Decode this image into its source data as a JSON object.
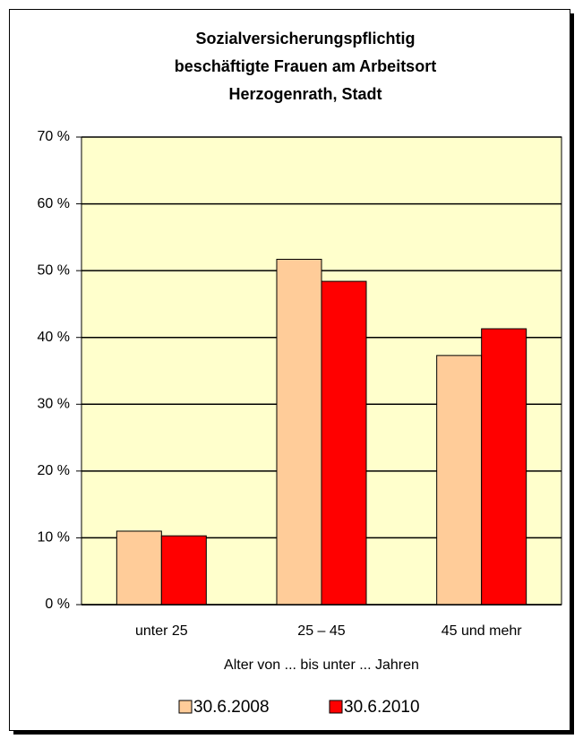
{
  "chart_data": {
    "type": "bar",
    "title": [
      "Sozialversicherungspflichtig",
      "beschäftigte Frauen am Arbeitsort",
      "Herzogenrath, Stadt"
    ],
    "x_label": "Alter von ... bis unter ... Jahren",
    "categories": [
      "unter 25",
      "25 – 45",
      "45 und mehr"
    ],
    "series": [
      {
        "name": "30.6.2008",
        "color": "#FFCC99",
        "values": [
          11.0,
          51.7,
          37.3
        ]
      },
      {
        "name": "30.6.2010",
        "color": "#FF0000",
        "values": [
          10.3,
          48.4,
          41.3
        ]
      }
    ],
    "ylim": [
      0,
      70
    ],
    "yticks": [
      {
        "value": 0,
        "label": "0 %"
      },
      {
        "value": 10,
        "label": "10 %"
      },
      {
        "value": 20,
        "label": "20 %"
      },
      {
        "value": 30,
        "label": "30 %"
      },
      {
        "value": 40,
        "label": "40 %"
      },
      {
        "value": 50,
        "label": "50 %"
      },
      {
        "value": 60,
        "label": "60 %"
      },
      {
        "value": 70,
        "label": "70 %"
      }
    ],
    "grid": true,
    "plot_background": "#FFFFCC",
    "legend": "bottom"
  }
}
